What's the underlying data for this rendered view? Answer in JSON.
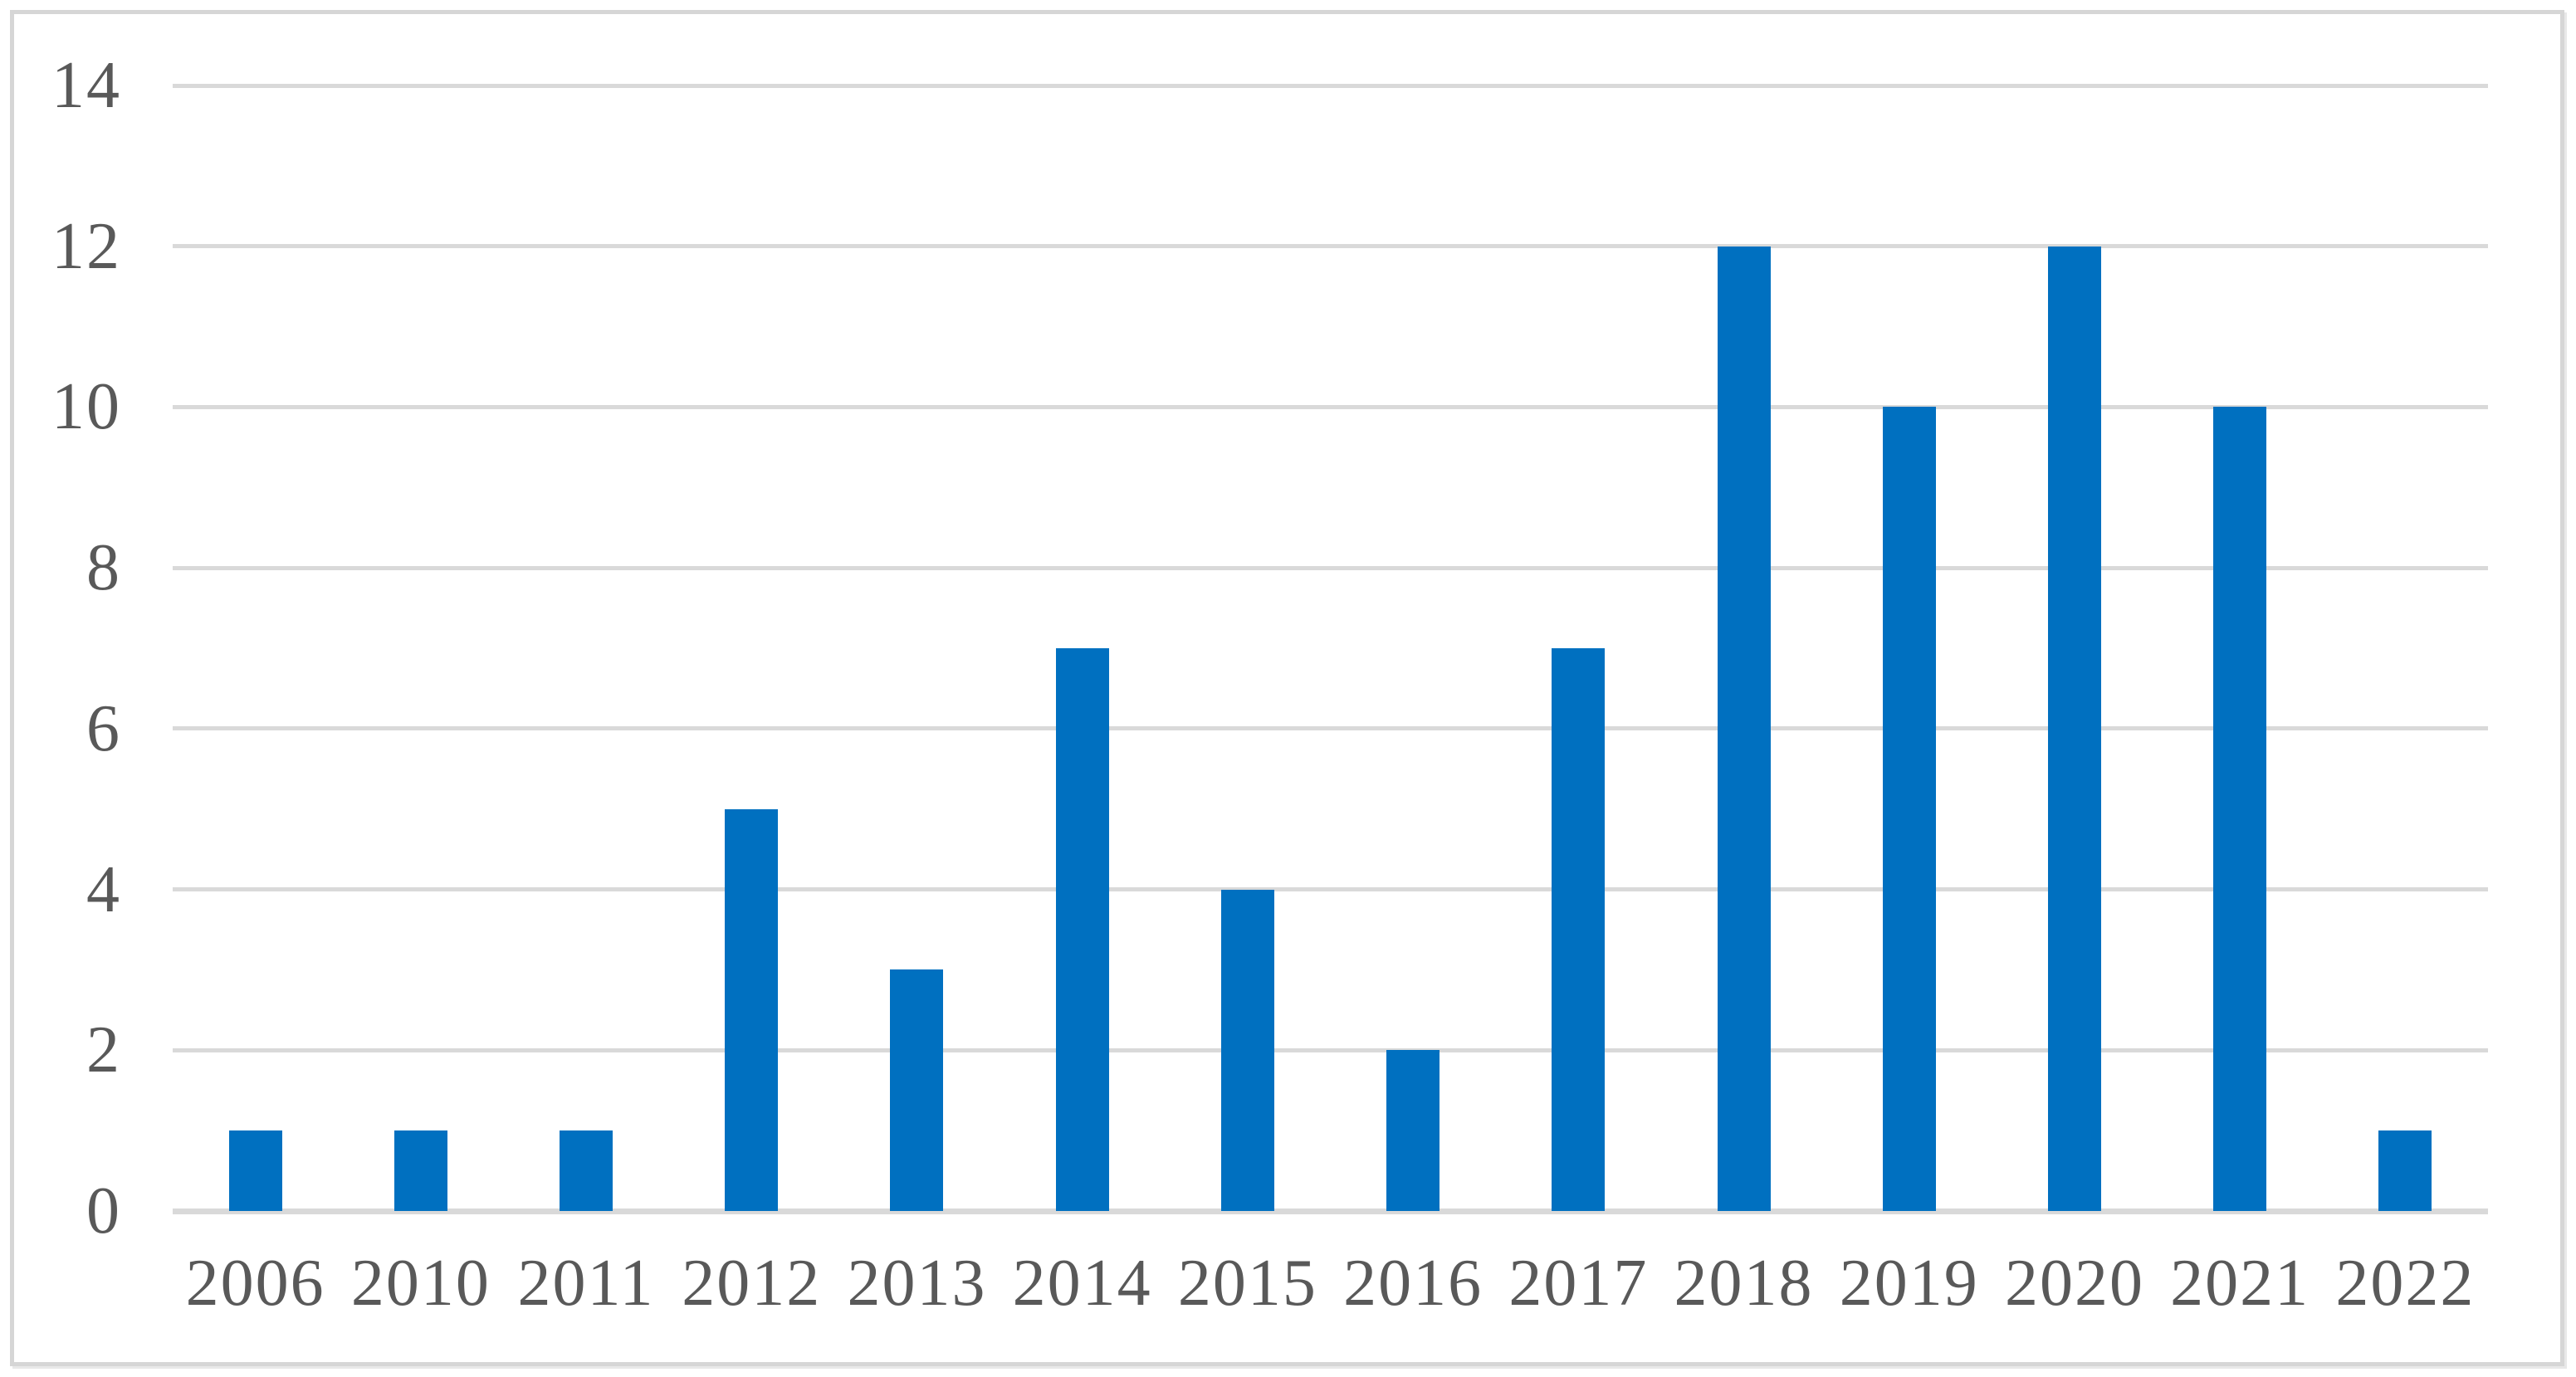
{
  "chart_data": {
    "type": "bar",
    "title": "",
    "categories": [
      "2006",
      "2010",
      "2011",
      "2012",
      "2013",
      "2014",
      "2015",
      "2016",
      "2017",
      "2018",
      "2019",
      "2020",
      "2021",
      "2022"
    ],
    "values": [
      1,
      1,
      1,
      5,
      3,
      7,
      4,
      2,
      7,
      12,
      10,
      12,
      10,
      1
    ],
    "xlabel": "",
    "ylabel": "",
    "ylim": [
      0,
      14
    ],
    "yticks": [
      0,
      2,
      4,
      6,
      8,
      10,
      12,
      14
    ],
    "grid": true,
    "legend_position": "none",
    "colors": {
      "bar": "#0070C0",
      "gridline": "#D9D9D9",
      "axis_line": "#D9D9D9",
      "tick_label": "#595959",
      "frame_border": "#D6D6D6",
      "background": "#FFFFFF"
    }
  }
}
